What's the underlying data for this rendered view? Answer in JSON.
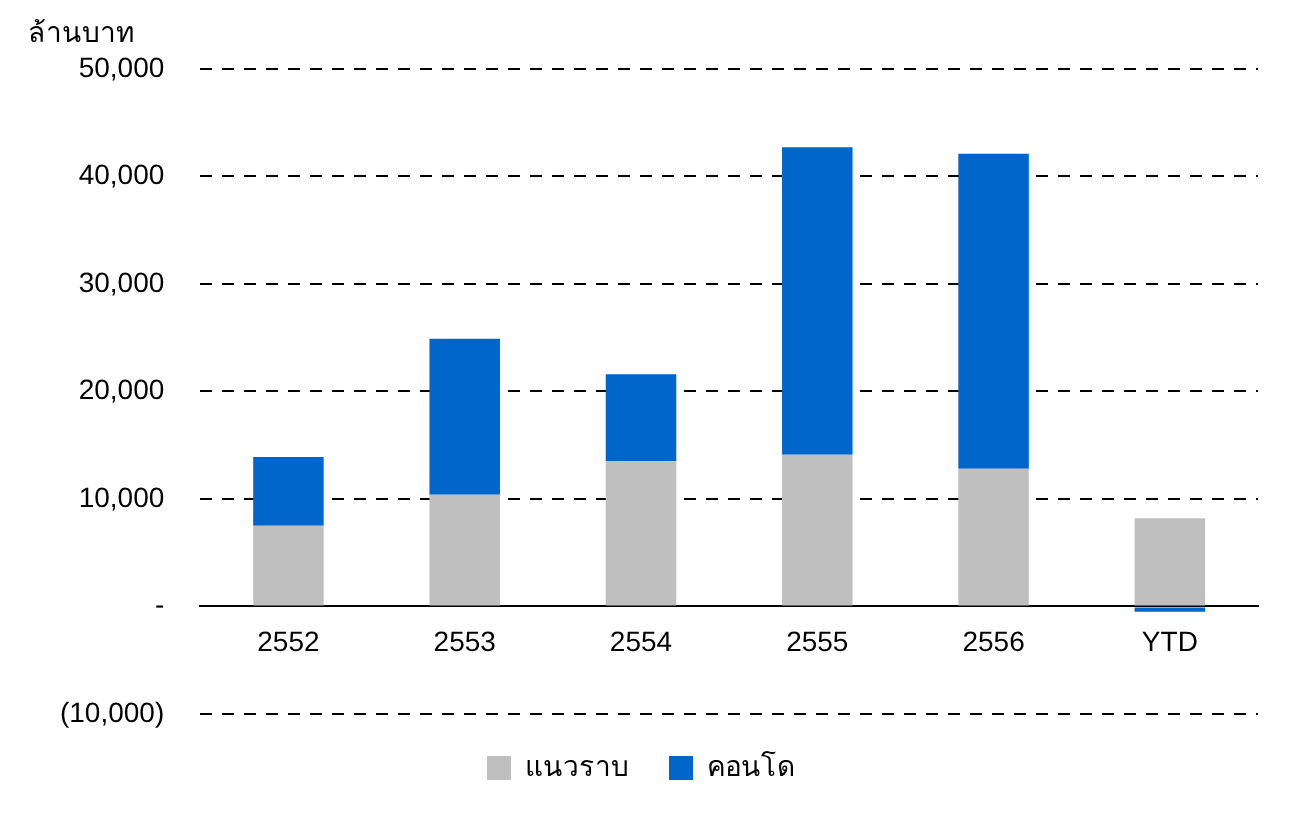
{
  "chart_data": {
    "type": "bar",
    "stacked": true,
    "ylabel": "ล้านบาท",
    "categories": [
      "2552",
      "2553",
      "2554",
      "2555",
      "2556",
      "YTD"
    ],
    "series": [
      {
        "name": "แนวราบ",
        "color": "#bfbfbf",
        "values": [
          7500,
          10400,
          13500,
          14100,
          12800,
          8200
        ]
      },
      {
        "name": "คอนโด",
        "color": "#0066cc",
        "values": [
          6400,
          14500,
          8100,
          28600,
          29300,
          -500
        ]
      }
    ],
    "ylim": [
      -10000,
      50000
    ],
    "yticks": [
      {
        "value": -10000,
        "label": "(10,000)"
      },
      {
        "value": 0,
        "label": "-"
      },
      {
        "value": 10000,
        "label": "10,000"
      },
      {
        "value": 20000,
        "label": "20,000"
      },
      {
        "value": 30000,
        "label": "30,000"
      },
      {
        "value": 40000,
        "label": "40,000"
      },
      {
        "value": 50000,
        "label": "50,000"
      }
    ],
    "grid": "y",
    "legend": "bottom"
  }
}
